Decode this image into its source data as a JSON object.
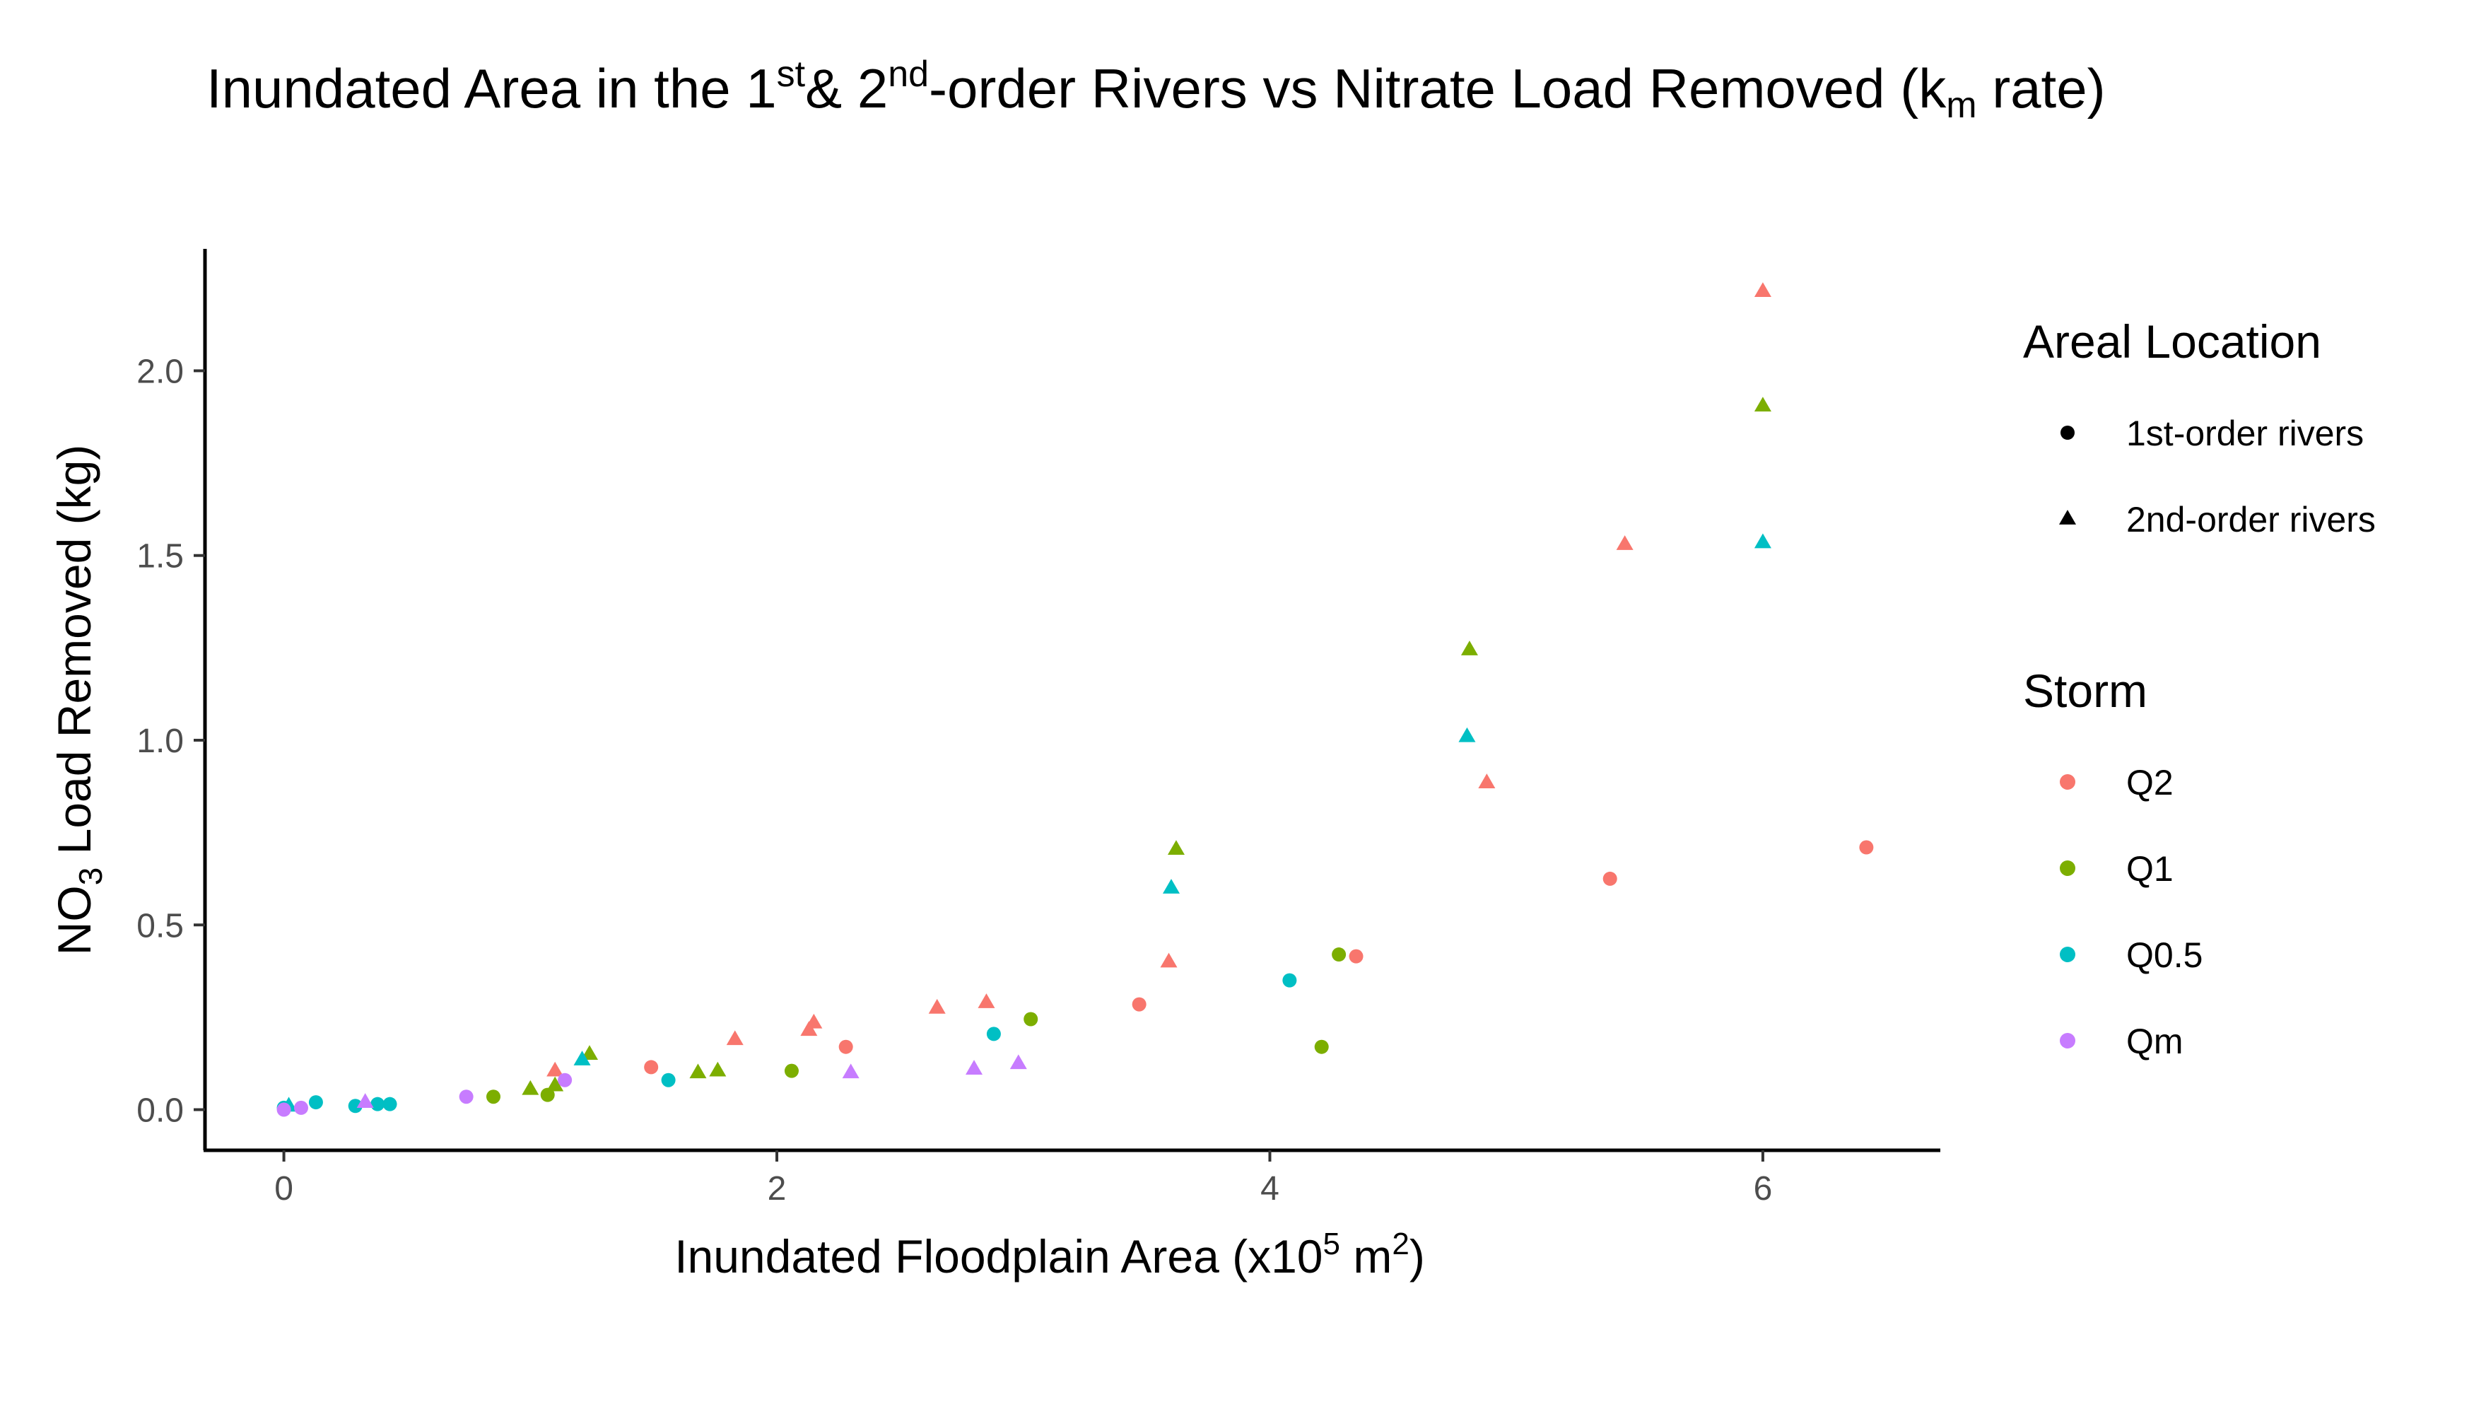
{
  "chart_data": {
    "type": "scatter",
    "title": {
      "part1": "Inundated Area in the 1",
      "sup1": "st",
      "part2": "& 2",
      "sup2": "nd",
      "part3": "-order Rivers vs Nitrate Load Removed (k",
      "sub": "m",
      "part4": " rate)"
    },
    "xlabel": {
      "part1": "Inundated Floodplain Area (x10",
      "sup1": "5",
      "part2": " m",
      "sup2": "2",
      "part3": ")"
    },
    "ylabel": {
      "part1": "NO",
      "sub": "3",
      "part2": " Load Removed (kg)"
    },
    "xlim": [
      -0.32,
      6.72
    ],
    "ylim": [
      -0.11,
      2.33
    ],
    "x_ticks": [
      0,
      2,
      4,
      6
    ],
    "x_tick_labels": [
      "0",
      "2",
      "4",
      "6"
    ],
    "y_ticks": [
      0.0,
      0.5,
      1.0,
      1.5,
      2.0
    ],
    "y_tick_labels": [
      "0.0",
      "0.5",
      "1.0",
      "1.5",
      "2.0"
    ],
    "grid": false,
    "legend_position": "right",
    "legends": {
      "shape": {
        "title": "Areal Location",
        "entries": [
          {
            "label": "1st-order rivers",
            "shape": "circle"
          },
          {
            "label": "2nd-order rivers",
            "shape": "triangle"
          }
        ]
      },
      "color": {
        "title": "Storm",
        "entries": [
          {
            "label": "Q2",
            "color": "#F8766D"
          },
          {
            "label": "Q1",
            "color": "#7CAE00"
          },
          {
            "label": "Q0.5",
            "color": "#00BFC4"
          },
          {
            "label": "Qm",
            "color": "#C77CFF"
          }
        ]
      }
    },
    "series": [
      {
        "storm": "Q2",
        "location": "1st-order rivers",
        "color": "#F8766D",
        "shape": "circle",
        "points": [
          [
            1.49,
            0.115
          ],
          [
            2.28,
            0.17
          ],
          [
            3.47,
            0.285
          ],
          [
            4.35,
            0.415
          ],
          [
            5.38,
            0.625
          ],
          [
            6.42,
            0.71
          ]
        ]
      },
      {
        "storm": "Q2",
        "location": "2nd-order rivers",
        "color": "#F8766D",
        "shape": "triangle",
        "points": [
          [
            1.1,
            0.105
          ],
          [
            1.83,
            0.19
          ],
          [
            2.13,
            0.215
          ],
          [
            2.15,
            0.235
          ],
          [
            2.65,
            0.275
          ],
          [
            2.85,
            0.29
          ],
          [
            3.59,
            0.4
          ],
          [
            4.88,
            0.885
          ],
          [
            5.44,
            1.53
          ],
          [
            6.0,
            2.215
          ]
        ]
      },
      {
        "storm": "Q1",
        "location": "1st-order rivers",
        "color": "#7CAE00",
        "shape": "circle",
        "points": [
          [
            0.85,
            0.035
          ],
          [
            1.07,
            0.04
          ],
          [
            2.06,
            0.105
          ],
          [
            3.03,
            0.245
          ],
          [
            4.21,
            0.17
          ],
          [
            4.28,
            0.42
          ]
        ]
      },
      {
        "storm": "Q1",
        "location": "2nd-order rivers",
        "color": "#7CAE00",
        "shape": "triangle",
        "points": [
          [
            1.0,
            0.055
          ],
          [
            1.1,
            0.065
          ],
          [
            1.24,
            0.15
          ],
          [
            1.68,
            0.1
          ],
          [
            1.76,
            0.105
          ],
          [
            3.62,
            0.705
          ],
          [
            4.81,
            1.245
          ],
          [
            6.0,
            1.905
          ]
        ]
      },
      {
        "storm": "Q0.5",
        "location": "1st-order rivers",
        "color": "#00BFC4",
        "shape": "circle",
        "points": [
          [
            0.0,
            0.005
          ],
          [
            0.13,
            0.02
          ],
          [
            0.29,
            0.01
          ],
          [
            0.38,
            0.015
          ],
          [
            0.43,
            0.015
          ],
          [
            1.56,
            0.08
          ],
          [
            2.88,
            0.205
          ],
          [
            4.08,
            0.35
          ]
        ]
      },
      {
        "storm": "Q0.5",
        "location": "2nd-order rivers",
        "color": "#00BFC4",
        "shape": "triangle",
        "points": [
          [
            0.02,
            0.01
          ],
          [
            1.21,
            0.135
          ],
          [
            3.6,
            0.6
          ],
          [
            4.8,
            1.01
          ],
          [
            6.0,
            1.535
          ]
        ]
      },
      {
        "storm": "Qm",
        "location": "1st-order rivers",
        "color": "#C77CFF",
        "shape": "circle",
        "points": [
          [
            0.0,
            0.0
          ],
          [
            0.07,
            0.005
          ],
          [
            0.74,
            0.035
          ],
          [
            1.14,
            0.08
          ]
        ]
      },
      {
        "storm": "Qm",
        "location": "2nd-order rivers",
        "color": "#C77CFF",
        "shape": "triangle",
        "points": [
          [
            0.33,
            0.02
          ],
          [
            2.3,
            0.1
          ],
          [
            2.8,
            0.11
          ],
          [
            2.98,
            0.125
          ]
        ]
      }
    ]
  }
}
